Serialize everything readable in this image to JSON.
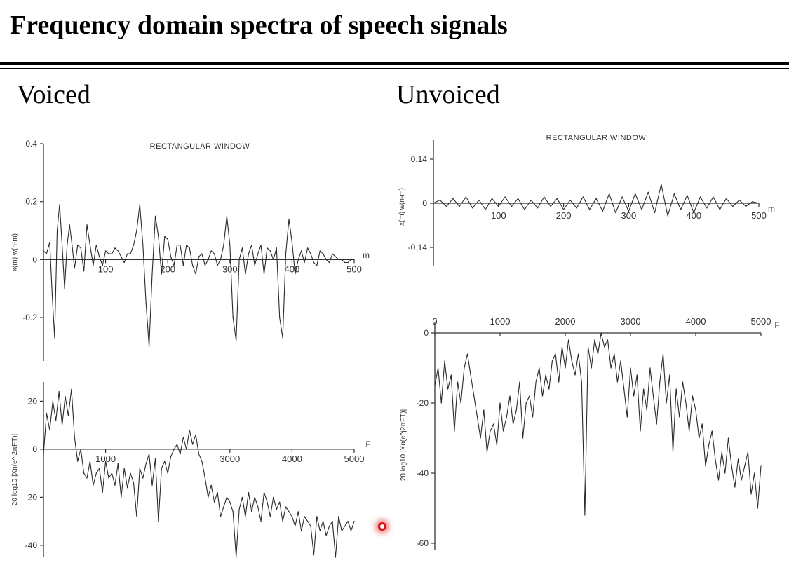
{
  "title": "Frequency domain spectra of speech signals",
  "columns": {
    "left": "Voiced",
    "right": "Unvoiced"
  },
  "chart_data": [
    {
      "id": "voiced-time",
      "type": "line",
      "title": "RECTANGULAR WINDOW",
      "ylabel": "x(m) w(n-m)",
      "xlabel": "m",
      "xlim": [
        0,
        500
      ],
      "ylim": [
        -0.35,
        0.4
      ],
      "xticks": [
        "100",
        "200",
        "300",
        "400",
        "500"
      ],
      "yticks": [
        "0.4",
        "0.2",
        "0",
        "-0.2"
      ],
      "series": [
        {
          "x": [
            0,
            5,
            10,
            14,
            18,
            22,
            26,
            30,
            34,
            38,
            42,
            46,
            50,
            55,
            60,
            65,
            70,
            75,
            80,
            85,
            90,
            95,
            100,
            105,
            110,
            115,
            120,
            125,
            130,
            135,
            140,
            145,
            150,
            155,
            160,
            165,
            170,
            175,
            180,
            185,
            190,
            195,
            200,
            205,
            210,
            215,
            220,
            225,
            230,
            235,
            240,
            245,
            250,
            255,
            260,
            265,
            270,
            275,
            280,
            285,
            290,
            295,
            300,
            305,
            310,
            315,
            320,
            325,
            330,
            335,
            340,
            345,
            350,
            355,
            360,
            365,
            370,
            375,
            380,
            385,
            390,
            395,
            400,
            405,
            410,
            415,
            420,
            425,
            430,
            435,
            440,
            445,
            450,
            455,
            460,
            465,
            470,
            475,
            480,
            485,
            490,
            495,
            500
          ],
          "y": [
            0.03,
            0.02,
            0.06,
            -0.12,
            -0.27,
            0.1,
            0.19,
            0.05,
            -0.1,
            0.05,
            0.12,
            0.05,
            -0.03,
            0.05,
            0.04,
            -0.04,
            0.12,
            0.05,
            -0.02,
            0.05,
            0.01,
            -0.02,
            0.03,
            0.02,
            0.02,
            0.04,
            0.03,
            0.01,
            -0.01,
            0.02,
            0.02,
            0.05,
            0.1,
            0.19,
            0.05,
            -0.15,
            -0.3,
            -0.05,
            0.15,
            0.08,
            -0.05,
            0.08,
            0.07,
            0.01,
            -0.02,
            0.05,
            0.05,
            -0.02,
            0.05,
            0.04,
            -0.02,
            -0.05,
            0.01,
            0.02,
            -0.02,
            0.0,
            0.03,
            0.02,
            -0.02,
            0.0,
            0.05,
            0.15,
            0.05,
            -0.2,
            -0.28,
            0.0,
            0.04,
            -0.05,
            0.02,
            0.05,
            -0.02,
            0.02,
            0.05,
            -0.05,
            0.04,
            0.03,
            0.0,
            0.04,
            -0.2,
            -0.27,
            0.02,
            0.14,
            0.06,
            -0.05,
            0.0,
            0.03,
            -0.01,
            0.04,
            0.02,
            -0.01,
            -0.02,
            0.03,
            0.02,
            0.0,
            -0.01,
            0.02,
            0.01,
            0.0,
            0.0,
            -0.01,
            -0.01,
            0.0,
            0.0
          ]
        }
      ]
    },
    {
      "id": "voiced-spectrum",
      "type": "line",
      "ylabel": "20 log10 |Xn(e^j2πFT)|",
      "xlabel": "F",
      "xlim": [
        0,
        5000
      ],
      "ylim": [
        -45,
        28
      ],
      "xticks": [
        "1000",
        "3000",
        "4000",
        "5000"
      ],
      "yticks": [
        "20",
        "0",
        "-20",
        "-40"
      ],
      "series": [
        {
          "x": [
            0,
            50,
            100,
            150,
            200,
            250,
            300,
            350,
            400,
            450,
            500,
            550,
            600,
            650,
            700,
            750,
            800,
            850,
            900,
            950,
            1000,
            1050,
            1100,
            1150,
            1200,
            1250,
            1300,
            1350,
            1400,
            1450,
            1500,
            1550,
            1600,
            1650,
            1700,
            1750,
            1800,
            1850,
            1900,
            1950,
            2000,
            2050,
            2100,
            2150,
            2200,
            2250,
            2300,
            2350,
            2400,
            2450,
            2500,
            2550,
            2600,
            2650,
            2700,
            2750,
            2800,
            2850,
            2900,
            2950,
            3000,
            3050,
            3100,
            3150,
            3200,
            3250,
            3300,
            3350,
            3400,
            3450,
            3500,
            3550,
            3600,
            3650,
            3700,
            3750,
            3800,
            3850,
            3900,
            3950,
            4000,
            4050,
            4100,
            4150,
            4200,
            4250,
            4300,
            4350,
            4400,
            4450,
            4500,
            4550,
            4600,
            4650,
            4700,
            4750,
            4800,
            4850,
            4900,
            4950,
            5000
          ],
          "y": [
            -2,
            15,
            8,
            20,
            12,
            24,
            10,
            22,
            14,
            25,
            5,
            -5,
            0,
            -10,
            -12,
            -5,
            -15,
            -10,
            -8,
            -18,
            -5,
            -12,
            -10,
            -15,
            -6,
            -20,
            -8,
            -16,
            -10,
            -14,
            -28,
            -8,
            -12,
            -6,
            -2,
            -15,
            -4,
            -30,
            -8,
            -5,
            -10,
            -3,
            0,
            2,
            -2,
            5,
            0,
            8,
            2,
            6,
            -2,
            -5,
            -12,
            -20,
            -15,
            -22,
            -18,
            -28,
            -24,
            -20,
            -22,
            -26,
            -45,
            -25,
            -20,
            -28,
            -18,
            -26,
            -20,
            -24,
            -30,
            -18,
            -22,
            -28,
            -20,
            -25,
            -22,
            -30,
            -24,
            -26,
            -28,
            -32,
            -26,
            -34,
            -28,
            -30,
            -32,
            -44,
            -28,
            -34,
            -30,
            -36,
            -32,
            -30,
            -45,
            -28,
            -34,
            -32,
            -30,
            -34,
            -30
          ]
        }
      ]
    },
    {
      "id": "unvoiced-time",
      "type": "line",
      "title": "RECTANGULAR WINDOW",
      "ylabel": "x(m) w(n-m)",
      "xlabel": "m",
      "xlim": [
        0,
        500
      ],
      "ylim": [
        -0.2,
        0.2
      ],
      "xticks": [
        "100",
        "200",
        "300",
        "400",
        "500"
      ],
      "yticks": [
        "0.14",
        "0",
        "-0.14"
      ],
      "series": [
        {
          "x": [
            0,
            10,
            20,
            30,
            40,
            50,
            60,
            70,
            80,
            90,
            100,
            110,
            120,
            130,
            140,
            150,
            160,
            170,
            180,
            190,
            200,
            210,
            220,
            230,
            240,
            250,
            260,
            270,
            280,
            290,
            300,
            310,
            320,
            330,
            340,
            350,
            360,
            370,
            380,
            390,
            400,
            410,
            420,
            430,
            440,
            450,
            460,
            470,
            480,
            490,
            500
          ],
          "y": [
            0.0,
            0.01,
            -0.01,
            0.015,
            -0.01,
            0.02,
            -0.015,
            0.01,
            -0.02,
            0.015,
            -0.01,
            0.02,
            -0.01,
            0.015,
            -0.02,
            0.01,
            -0.015,
            0.02,
            -0.01,
            0.015,
            -0.02,
            0.01,
            -0.015,
            0.02,
            -0.02,
            0.015,
            -0.025,
            0.03,
            -0.03,
            0.02,
            -0.025,
            0.03,
            -0.02,
            0.035,
            -0.03,
            0.06,
            -0.04,
            0.03,
            -0.02,
            0.025,
            -0.03,
            0.02,
            -0.015,
            0.02,
            -0.02,
            0.015,
            -0.01,
            0.01,
            -0.01,
            0.005,
            0.0
          ]
        }
      ]
    },
    {
      "id": "unvoiced-spectrum",
      "type": "line",
      "ylabel": "20 log10 |Xn(e^j2πFT)|",
      "xlabel": "F",
      "xlim": [
        0,
        5000
      ],
      "ylim": [
        -62,
        3
      ],
      "xticks": [
        "0",
        "1000",
        "2000",
        "3000",
        "4000",
        "5000"
      ],
      "yticks": [
        "0",
        "-20",
        "-40",
        "-60"
      ],
      "series": [
        {
          "x": [
            0,
            50,
            100,
            150,
            200,
            250,
            300,
            350,
            400,
            450,
            500,
            550,
            600,
            650,
            700,
            750,
            800,
            850,
            900,
            950,
            1000,
            1050,
            1100,
            1150,
            1200,
            1250,
            1300,
            1350,
            1400,
            1450,
            1500,
            1550,
            1600,
            1650,
            1700,
            1750,
            1800,
            1850,
            1900,
            1950,
            2000,
            2050,
            2100,
            2150,
            2200,
            2250,
            2300,
            2350,
            2400,
            2450,
            2500,
            2550,
            2600,
            2650,
            2700,
            2750,
            2800,
            2850,
            2900,
            2950,
            3000,
            3050,
            3100,
            3150,
            3200,
            3250,
            3300,
            3350,
            3400,
            3450,
            3500,
            3550,
            3600,
            3650,
            3700,
            3750,
            3800,
            3850,
            3900,
            3950,
            4000,
            4050,
            4100,
            4150,
            4200,
            4250,
            4300,
            4350,
            4400,
            4450,
            4500,
            4550,
            4600,
            4650,
            4700,
            4750,
            4800,
            4850,
            4900,
            4950,
            5000
          ],
          "y": [
            -15,
            -10,
            -20,
            -8,
            -16,
            -12,
            -28,
            -14,
            -20,
            -10,
            -6,
            -12,
            -18,
            -24,
            -30,
            -22,
            -34,
            -28,
            -26,
            -32,
            -20,
            -28,
            -24,
            -18,
            -26,
            -22,
            -14,
            -30,
            -20,
            -18,
            -24,
            -14,
            -10,
            -18,
            -12,
            -16,
            -8,
            -6,
            -14,
            -4,
            -10,
            -2,
            -8,
            -12,
            -6,
            -14,
            -52,
            -4,
            -10,
            -2,
            -6,
            0,
            -4,
            -2,
            -10,
            -6,
            -14,
            -8,
            -16,
            -24,
            -10,
            -18,
            -12,
            -28,
            -16,
            -22,
            -10,
            -18,
            -26,
            -14,
            -6,
            -20,
            -12,
            -34,
            -16,
            -24,
            -14,
            -20,
            -28,
            -18,
            -22,
            -30,
            -26,
            -38,
            -32,
            -28,
            -36,
            -42,
            -34,
            -40,
            -30,
            -38,
            -44,
            -36,
            -42,
            -38,
            -34,
            -46,
            -40,
            -50,
            -38
          ]
        }
      ]
    }
  ]
}
